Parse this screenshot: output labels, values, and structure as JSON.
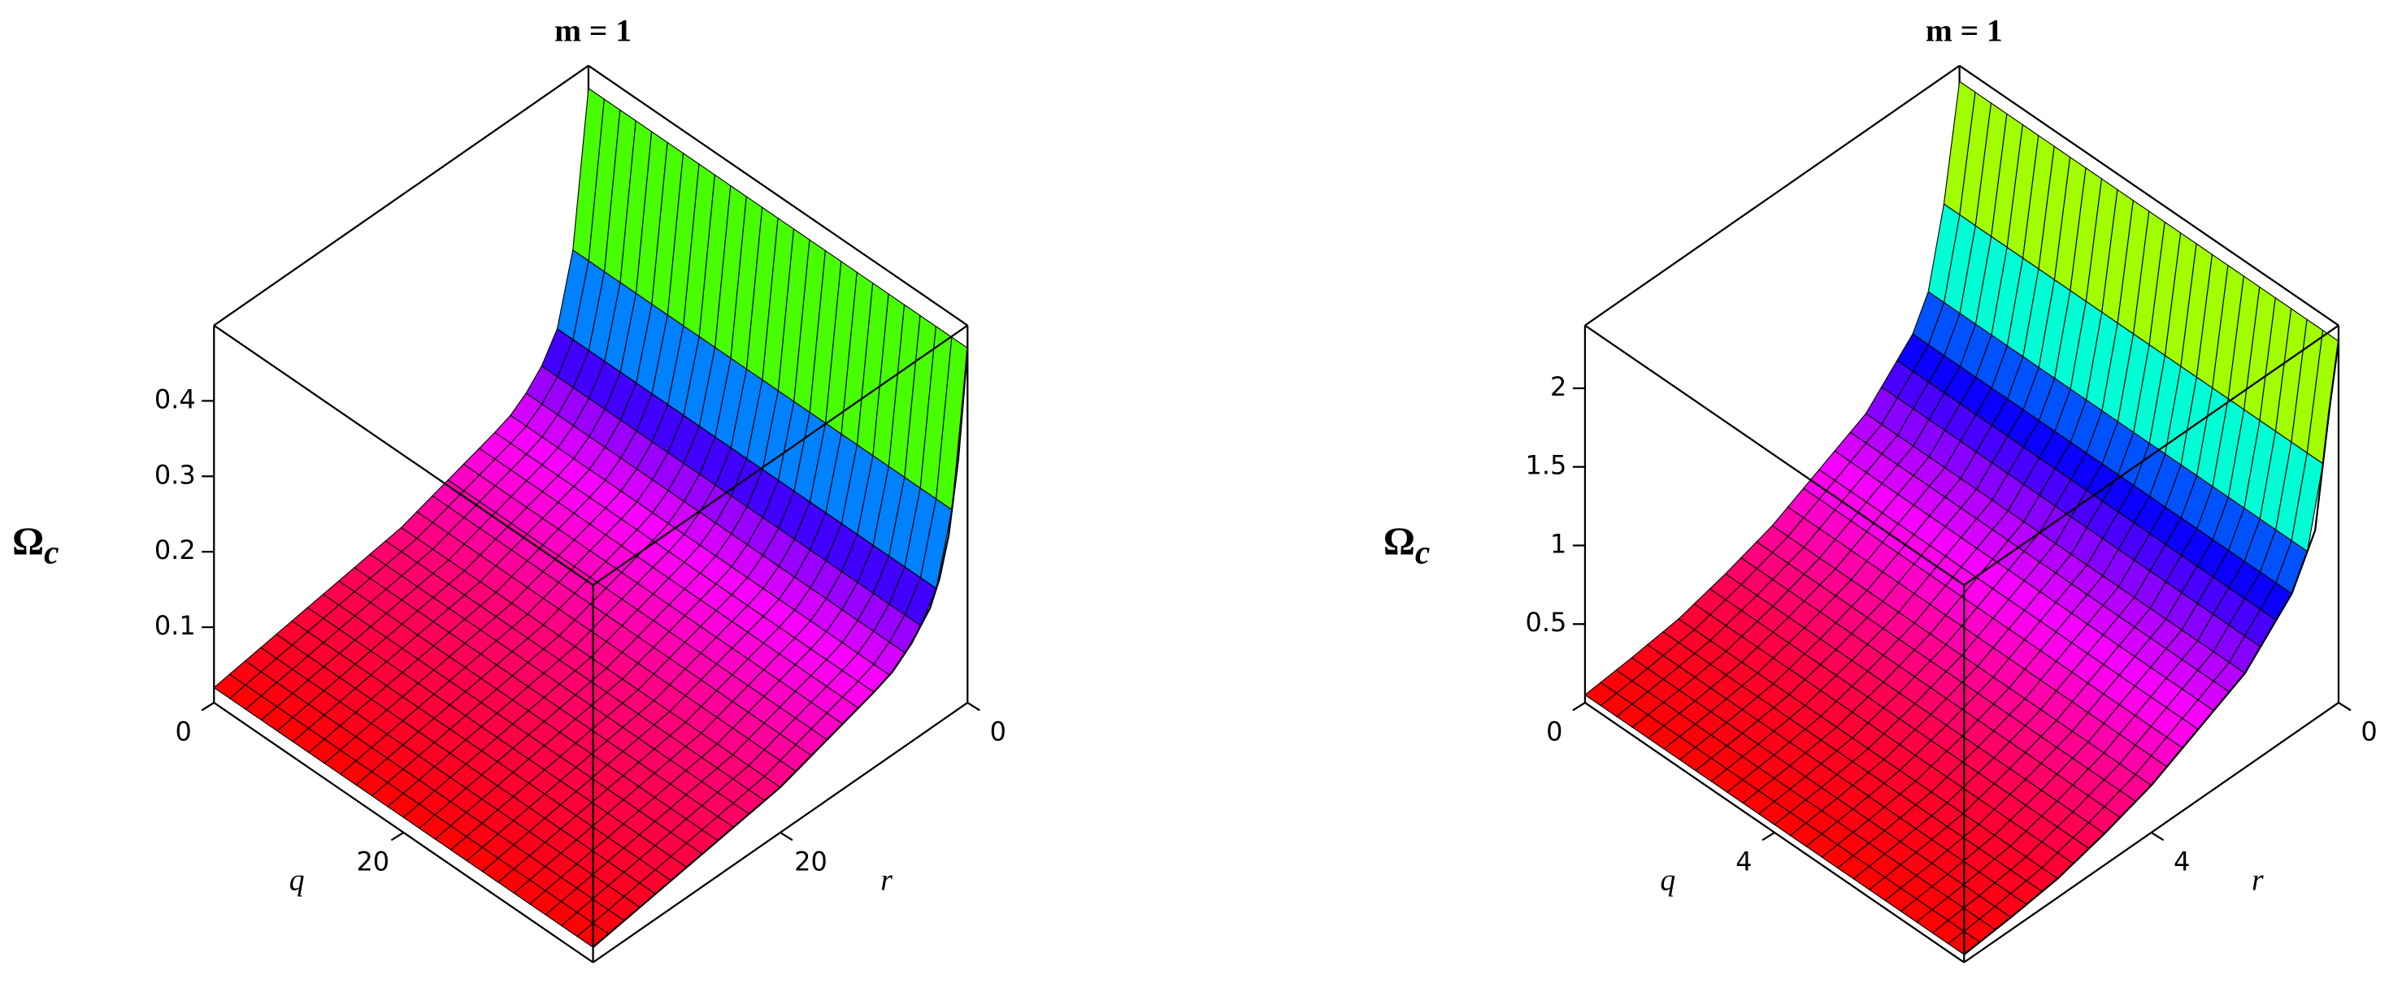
{
  "chart_data": [
    {
      "type": "surface",
      "title": "m = 1",
      "zlabel": "Ω",
      "zlabel_subscript": "c",
      "xlabel": "q",
      "ylabel": "r",
      "xlim": [
        0,
        40
      ],
      "xticks": [
        0,
        20
      ],
      "ylim": [
        0,
        40
      ],
      "yticks": [
        0,
        20
      ],
      "zlim": [
        0,
        0.5
      ],
      "zticks": [
        0.1,
        0.2,
        0.3,
        0.4
      ],
      "y": [
        0,
        1,
        2,
        3,
        4,
        6,
        8,
        10,
        15,
        20,
        25,
        30,
        35,
        40
      ],
      "values": [
        0.47,
        0.33,
        0.24,
        0.19,
        0.16,
        0.13,
        0.11,
        0.1,
        0.08,
        0.06,
        0.05,
        0.04,
        0.03,
        0.02
      ]
    },
    {
      "type": "surface",
      "title": "m = 1",
      "zlabel": "Ω",
      "zlabel_subscript": "c",
      "xlabel": "q",
      "ylabel": "r",
      "xlim": [
        0,
        8
      ],
      "xticks": [
        0,
        4
      ],
      "ylim": [
        0,
        8
      ],
      "yticks": [
        0,
        4
      ],
      "zlim": [
        0,
        2.4
      ],
      "zticks": [
        0.5,
        1,
        1.5,
        2
      ],
      "y": [
        0,
        0.2,
        0.5,
        1,
        1.5,
        2,
        3,
        4,
        5,
        6,
        7,
        8
      ],
      "values": [
        2.3,
        1.9,
        1.2,
        0.9,
        0.75,
        0.6,
        0.45,
        0.3,
        0.2,
        0.12,
        0.08,
        0.05
      ]
    }
  ]
}
